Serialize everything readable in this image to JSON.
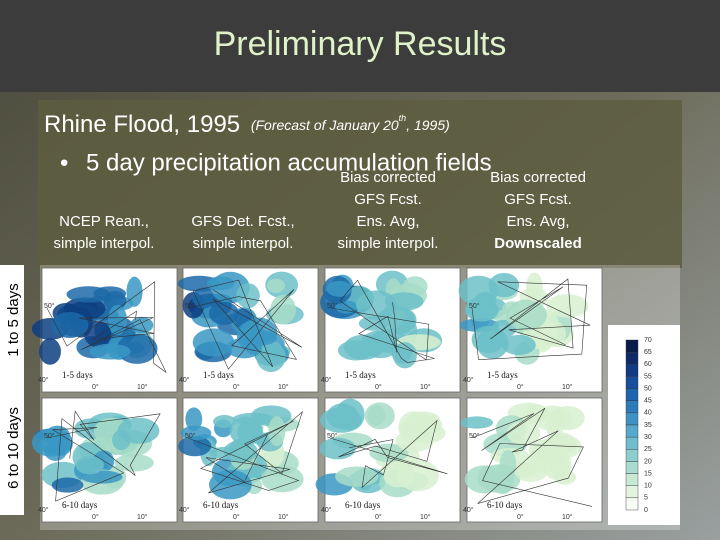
{
  "header": {
    "title": "Preliminary Results"
  },
  "subtitle": {
    "main": "Rhine Flood, 1995",
    "note_start": "(Forecast of January 20",
    "note_sup": "th",
    "note_end": ", 1995)"
  },
  "bullet": {
    "marker": "•",
    "text": "5 day precipitation accumulation fields"
  },
  "columns": [
    {
      "lines": [
        "NCEP Rean.,",
        "simple interpol."
      ]
    },
    {
      "lines": [
        "GFS Det. Fcst.,",
        "simple interpol."
      ]
    },
    {
      "lines": [
        "Bias corrected",
        "GFS Fcst.",
        "Ens. Avg,",
        "simple interpol."
      ]
    },
    {
      "lines": [
        "Bias corrected",
        "GFS Fcst.",
        "Ens. Avg,"
      ],
      "emphasis": "Downscaled"
    }
  ],
  "rows": [
    "1 to 5 days",
    "6 to 10 days"
  ],
  "panel_labels": [
    "1-5 days",
    "6-10 days"
  ],
  "map_axis": {
    "lat_top": "50°",
    "lat_bottom": "40°",
    "lon_left": "0°",
    "lon_right": "10°"
  },
  "colorbar": {
    "labels": [
      "70",
      "65",
      "60",
      "55",
      "50",
      "45",
      "40",
      "35",
      "30",
      "25",
      "20",
      "15",
      "10",
      "5",
      "0"
    ]
  }
}
